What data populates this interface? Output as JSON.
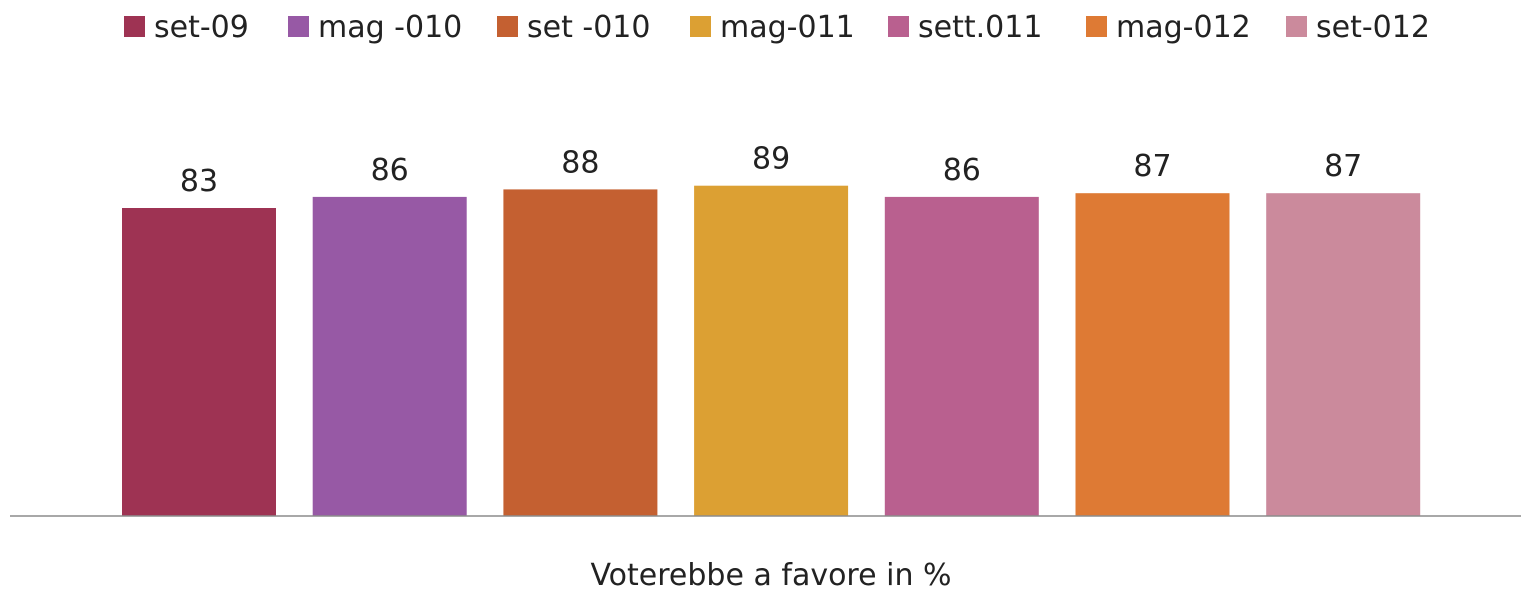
{
  "chart_data": {
    "type": "bar",
    "categories": [
      "Voterebbe a favore in %"
    ],
    "series": [
      {
        "name": "set-09",
        "values": [
          83
        ],
        "color": "#9e3353"
      },
      {
        "name": "mag -010",
        "values": [
          86
        ],
        "color": "#9759a5"
      },
      {
        "name": "set -010",
        "values": [
          88
        ],
        "color": "#c46031"
      },
      {
        "name": "mag-011",
        "values": [
          89
        ],
        "color": "#dca033"
      },
      {
        "name": "sett.011",
        "values": [
          86
        ],
        "color": "#b9608f"
      },
      {
        "name": "mag-012",
        "values": [
          87
        ],
        "color": "#de7a34"
      },
      {
        "name": "set-012",
        "values": [
          87
        ],
        "color": "#cb8a9c"
      }
    ],
    "title": "",
    "xlabel": "",
    "ylabel": "",
    "ylim": [
      0,
      100
    ],
    "grid": false,
    "legend_position": "top",
    "data_labels": true
  }
}
